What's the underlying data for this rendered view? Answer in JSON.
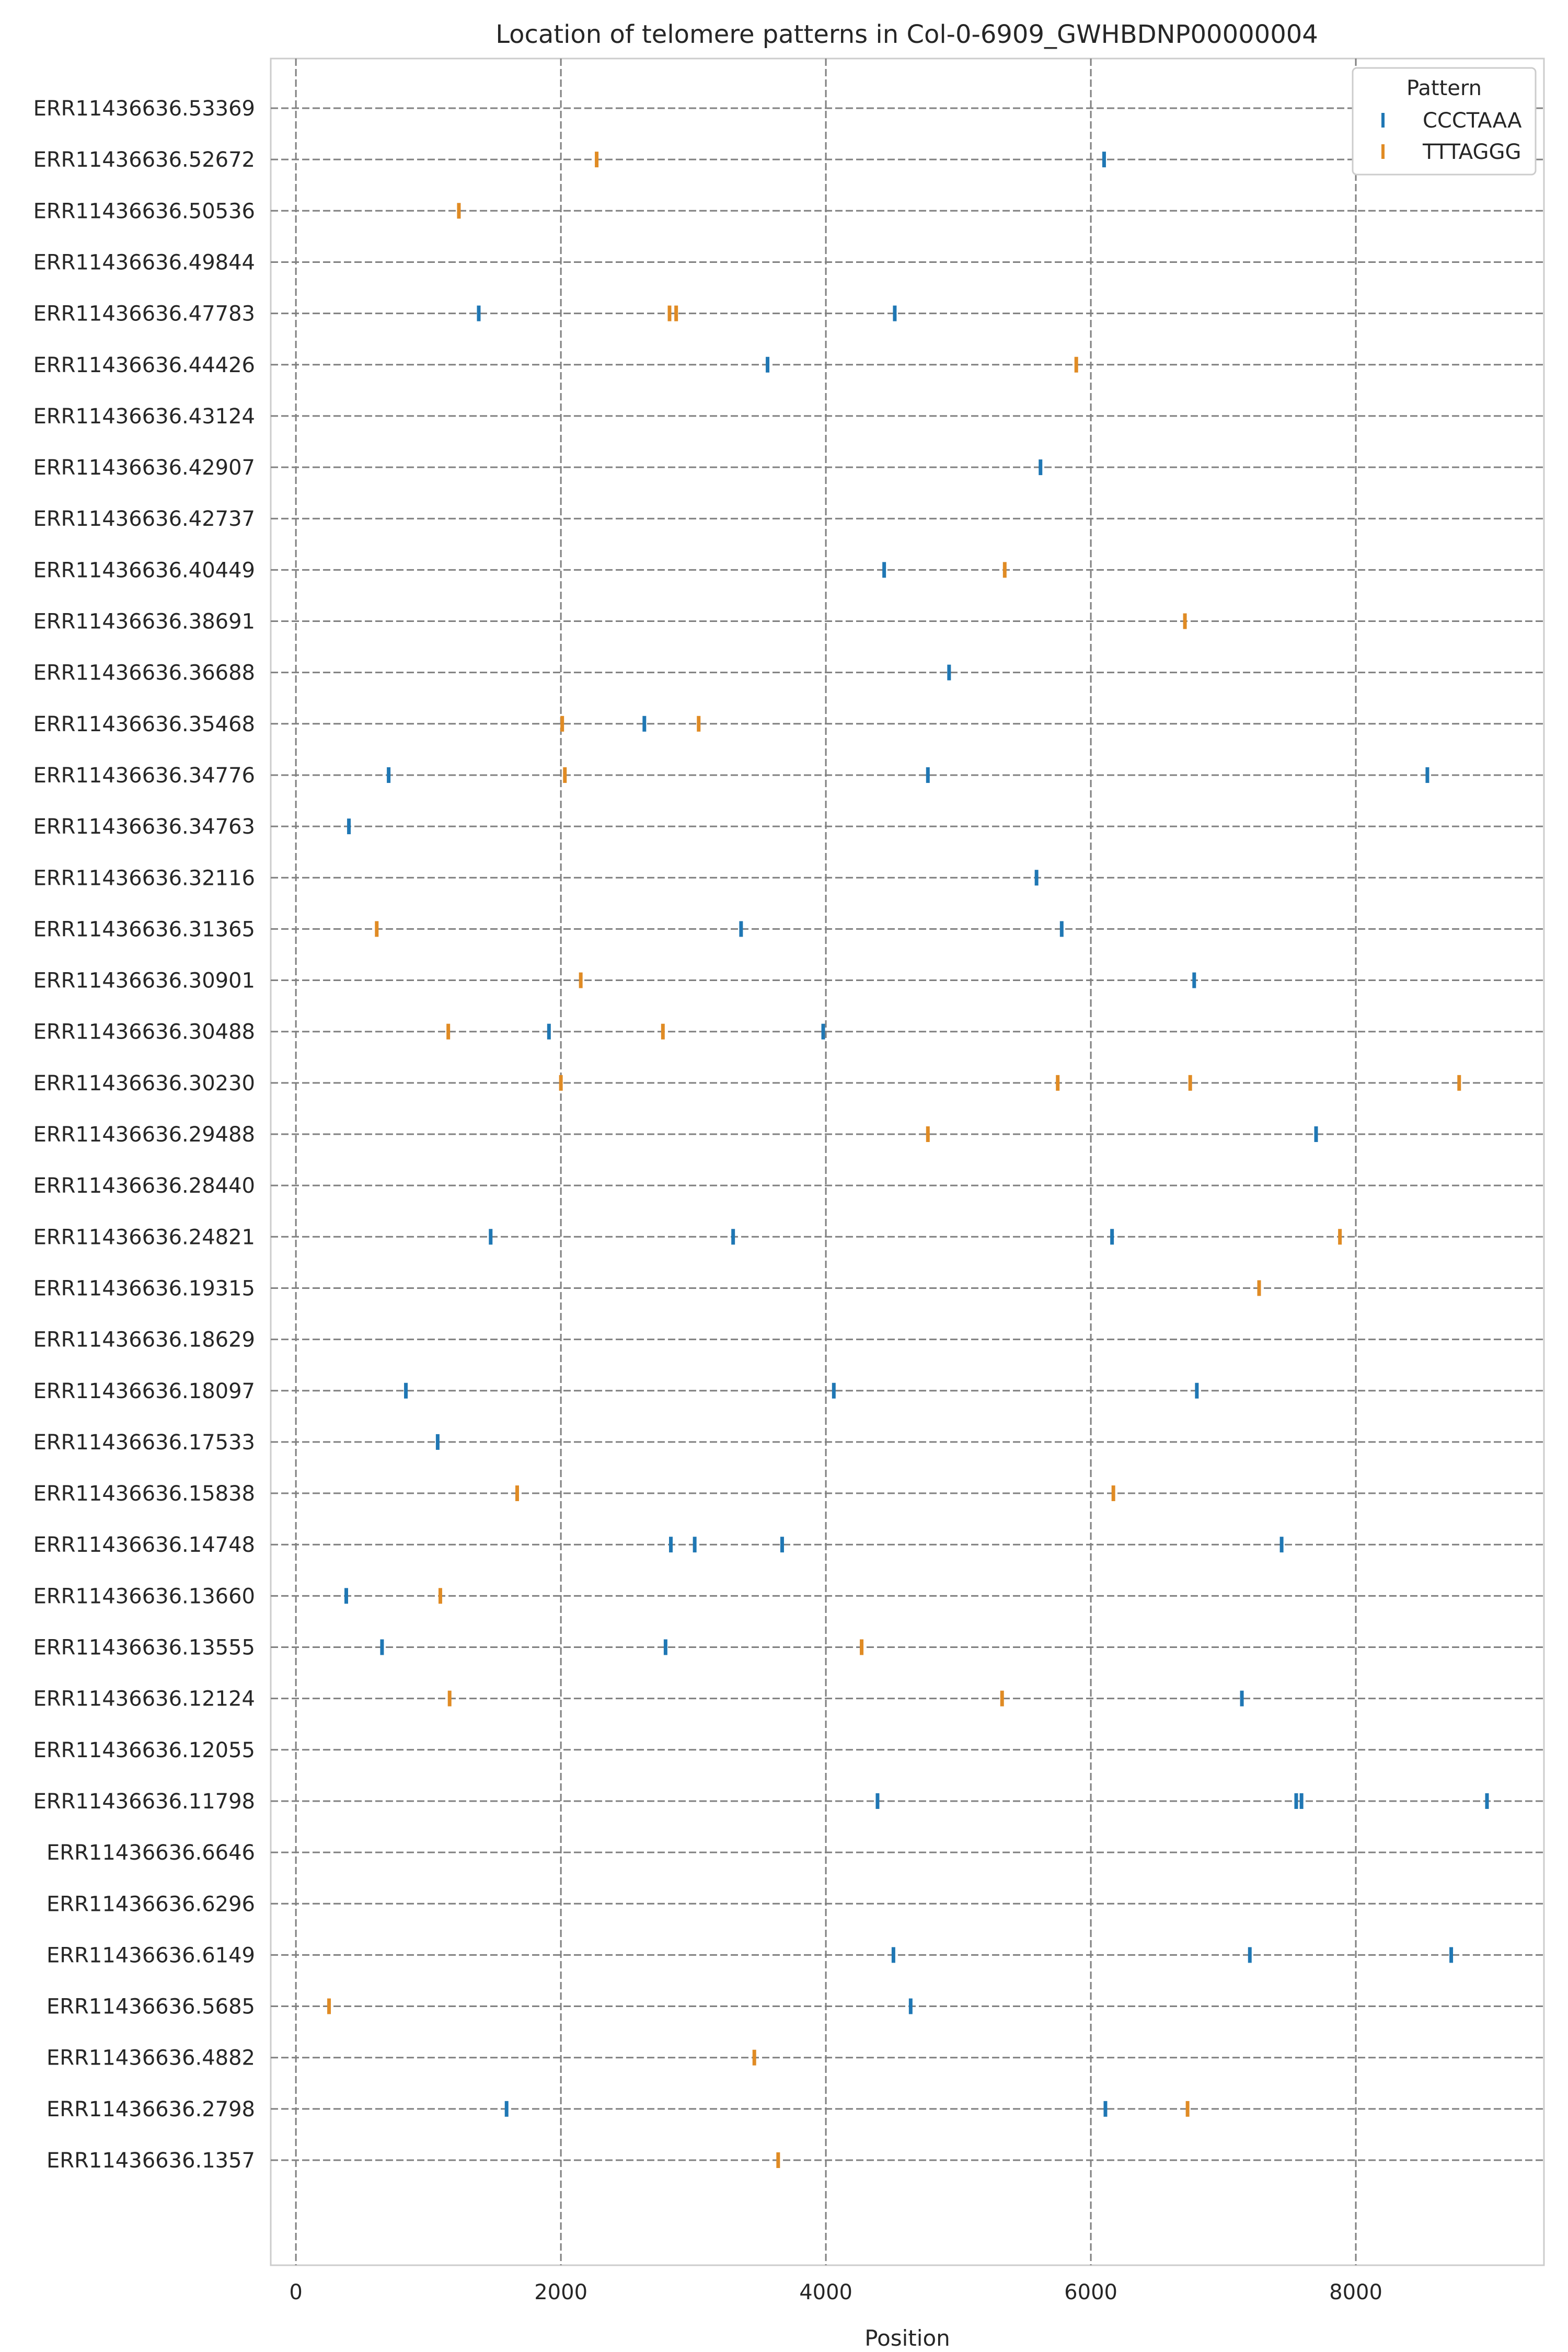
{
  "chart_data": {
    "type": "scatter",
    "title": "Location of telomere patterns in Col-0-6909_GWHBDNP00000004",
    "xlabel": "Position",
    "ylabel": "",
    "xlim": [
      -190,
      9420
    ],
    "xticks": [
      0,
      2000,
      4000,
      6000,
      8000
    ],
    "grid": true,
    "legend": {
      "title": "Pattern",
      "placement": "top-right"
    },
    "categories": [
      "ERR11436636.53369",
      "ERR11436636.52672",
      "ERR11436636.50536",
      "ERR11436636.49844",
      "ERR11436636.47783",
      "ERR11436636.44426",
      "ERR11436636.43124",
      "ERR11436636.42907",
      "ERR11436636.42737",
      "ERR11436636.40449",
      "ERR11436636.38691",
      "ERR11436636.36688",
      "ERR11436636.35468",
      "ERR11436636.34776",
      "ERR11436636.34763",
      "ERR11436636.32116",
      "ERR11436636.31365",
      "ERR11436636.30901",
      "ERR11436636.30488",
      "ERR11436636.30230",
      "ERR11436636.29488",
      "ERR11436636.28440",
      "ERR11436636.24821",
      "ERR11436636.19315",
      "ERR11436636.18629",
      "ERR11436636.18097",
      "ERR11436636.17533",
      "ERR11436636.15838",
      "ERR11436636.14748",
      "ERR11436636.13660",
      "ERR11436636.13555",
      "ERR11436636.12124",
      "ERR11436636.12055",
      "ERR11436636.11798",
      "ERR11436636.6646",
      "ERR11436636.6296",
      "ERR11436636.6149",
      "ERR11436636.5685",
      "ERR11436636.4882",
      "ERR11436636.2798",
      "ERR11436636.1357"
    ],
    "series": [
      {
        "name": "CCCTAAA",
        "color": "#1f77b4",
        "points": [
          {
            "read": "ERR11436636.52672",
            "x": 6100
          },
          {
            "read": "ERR11436636.47783",
            "x": 1380
          },
          {
            "read": "ERR11436636.47783",
            "x": 4520
          },
          {
            "read": "ERR11436636.44426",
            "x": 3560
          },
          {
            "read": "ERR11436636.42907",
            "x": 5620
          },
          {
            "read": "ERR11436636.40449",
            "x": 4440
          },
          {
            "read": "ERR11436636.36688",
            "x": 4930
          },
          {
            "read": "ERR11436636.35468",
            "x": 2630
          },
          {
            "read": "ERR11436636.34776",
            "x": 700
          },
          {
            "read": "ERR11436636.34776",
            "x": 4770
          },
          {
            "read": "ERR11436636.34776",
            "x": 8540
          },
          {
            "read": "ERR11436636.34763",
            "x": 400
          },
          {
            "read": "ERR11436636.32116",
            "x": 5590
          },
          {
            "read": "ERR11436636.31365",
            "x": 3360
          },
          {
            "read": "ERR11436636.31365",
            "x": 5780
          },
          {
            "read": "ERR11436636.30901",
            "x": 6780
          },
          {
            "read": "ERR11436636.30488",
            "x": 1910
          },
          {
            "read": "ERR11436636.30488",
            "x": 3980
          },
          {
            "read": "ERR11436636.29488",
            "x": 7700
          },
          {
            "read": "ERR11436636.24821",
            "x": 1470
          },
          {
            "read": "ERR11436636.24821",
            "x": 3300
          },
          {
            "read": "ERR11436636.24821",
            "x": 6160
          },
          {
            "read": "ERR11436636.18097",
            "x": 830
          },
          {
            "read": "ERR11436636.18097",
            "x": 4060
          },
          {
            "read": "ERR11436636.18097",
            "x": 6800
          },
          {
            "read": "ERR11436636.17533",
            "x": 1070
          },
          {
            "read": "ERR11436636.14748",
            "x": 2830
          },
          {
            "read": "ERR11436636.14748",
            "x": 3010
          },
          {
            "read": "ERR11436636.14748",
            "x": 3670
          },
          {
            "read": "ERR11436636.14748",
            "x": 7440
          },
          {
            "read": "ERR11436636.13660",
            "x": 380
          },
          {
            "read": "ERR11436636.13555",
            "x": 650
          },
          {
            "read": "ERR11436636.13555",
            "x": 2790
          },
          {
            "read": "ERR11436636.12124",
            "x": 7140
          },
          {
            "read": "ERR11436636.11798",
            "x": 4390
          },
          {
            "read": "ERR11436636.11798",
            "x": 7550
          },
          {
            "read": "ERR11436636.11798",
            "x": 7590
          },
          {
            "read": "ERR11436636.11798",
            "x": 8990
          },
          {
            "read": "ERR11436636.6149",
            "x": 4510
          },
          {
            "read": "ERR11436636.6149",
            "x": 7200
          },
          {
            "read": "ERR11436636.6149",
            "x": 8720
          },
          {
            "read": "ERR11436636.5685",
            "x": 4640
          },
          {
            "read": "ERR11436636.2798",
            "x": 1590
          },
          {
            "read": "ERR11436636.2798",
            "x": 6110
          }
        ]
      },
      {
        "name": "TTTAGGG",
        "color": "#e08b24",
        "points": [
          {
            "read": "ERR11436636.52672",
            "x": 2270
          },
          {
            "read": "ERR11436636.50536",
            "x": 1230
          },
          {
            "read": "ERR11436636.47783",
            "x": 2820
          },
          {
            "read": "ERR11436636.47783",
            "x": 2870
          },
          {
            "read": "ERR11436636.44426",
            "x": 5890
          },
          {
            "read": "ERR11436636.40449",
            "x": 5350
          },
          {
            "read": "ERR11436636.38691",
            "x": 6710
          },
          {
            "read": "ERR11436636.35468",
            "x": 2010
          },
          {
            "read": "ERR11436636.35468",
            "x": 3040
          },
          {
            "read": "ERR11436636.34776",
            "x": 2030
          },
          {
            "read": "ERR11436636.31365",
            "x": 610
          },
          {
            "read": "ERR11436636.30901",
            "x": 2150
          },
          {
            "read": "ERR11436636.30488",
            "x": 1150
          },
          {
            "read": "ERR11436636.30488",
            "x": 2770
          },
          {
            "read": "ERR11436636.30230",
            "x": 2000
          },
          {
            "read": "ERR11436636.30230",
            "x": 5750
          },
          {
            "read": "ERR11436636.30230",
            "x": 6750
          },
          {
            "read": "ERR11436636.30230",
            "x": 8780
          },
          {
            "read": "ERR11436636.29488",
            "x": 4770
          },
          {
            "read": "ERR11436636.24821",
            "x": 7880
          },
          {
            "read": "ERR11436636.19315",
            "x": 7270
          },
          {
            "read": "ERR11436636.15838",
            "x": 1670
          },
          {
            "read": "ERR11436636.15838",
            "x": 6170
          },
          {
            "read": "ERR11436636.13660",
            "x": 1090
          },
          {
            "read": "ERR11436636.13555",
            "x": 4270
          },
          {
            "read": "ERR11436636.12124",
            "x": 1160
          },
          {
            "read": "ERR11436636.12124",
            "x": 5330
          },
          {
            "read": "ERR11436636.5685",
            "x": 250
          },
          {
            "read": "ERR11436636.4882",
            "x": 3460
          },
          {
            "read": "ERR11436636.2798",
            "x": 6730
          },
          {
            "read": "ERR11436636.1357",
            "x": 3640
          }
        ]
      }
    ]
  }
}
